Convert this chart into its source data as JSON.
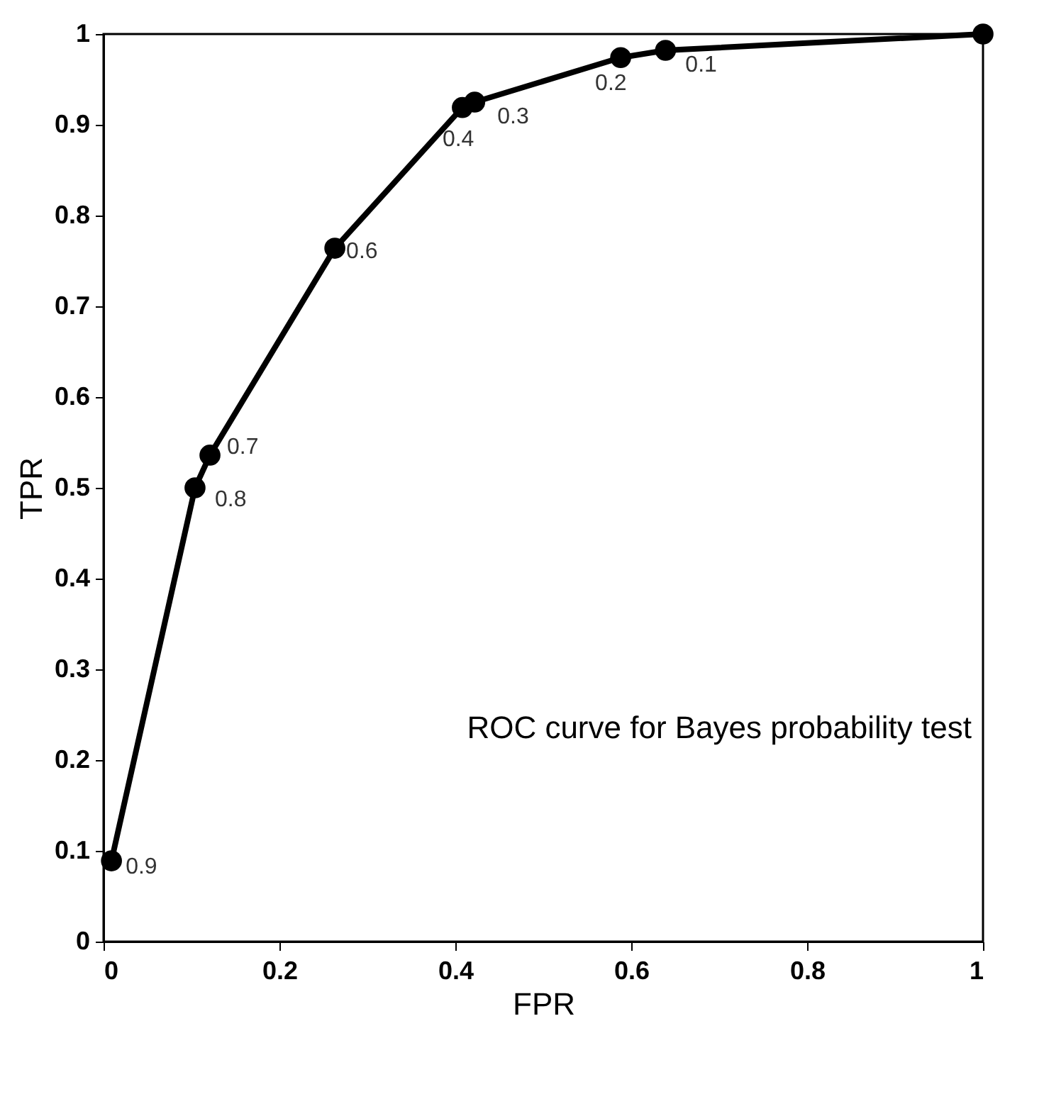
{
  "chart_data": {
    "type": "line",
    "xlabel": "FPR",
    "ylabel": "TPR",
    "x": [
      0.009,
      0.104,
      0.121,
      0.263,
      0.408,
      0.422,
      0.588,
      0.639,
      1.0
    ],
    "series": [
      {
        "color": "#000000",
        "values": [
          0.089,
          0.5,
          0.536,
          0.764,
          0.919,
          0.925,
          0.974,
          0.982,
          1.0
        ]
      }
    ],
    "xlim": [
      0,
      1
    ],
    "ylim": [
      0,
      1
    ],
    "xticks": [
      0,
      0.2,
      0.4,
      0.6,
      0.8,
      1
    ],
    "yticks": [
      0,
      0.1,
      0.2,
      0.3,
      0.4,
      0.5,
      0.6,
      0.7,
      0.8,
      0.9,
      1
    ],
    "marker": "circle",
    "line_style": "solid",
    "grid": false,
    "annotations": [
      {
        "text": "0.9",
        "x": 0.009,
        "y": 0.089
      },
      {
        "text": "0.8",
        "x": 0.104,
        "y": 0.5
      },
      {
        "text": "0.7",
        "x": 0.121,
        "y": 0.536
      },
      {
        "text": "0.6",
        "x": 0.263,
        "y": 0.764
      },
      {
        "text": "0.4",
        "x": 0.408,
        "y": 0.919
      },
      {
        "text": "0.3",
        "x": 0.422,
        "y": 0.925
      },
      {
        "text": "0.2",
        "x": 0.588,
        "y": 0.974
      },
      {
        "text": "0.1",
        "x": 0.639,
        "y": 0.982
      },
      "ROC curve for Bayes probability test"
    ]
  }
}
